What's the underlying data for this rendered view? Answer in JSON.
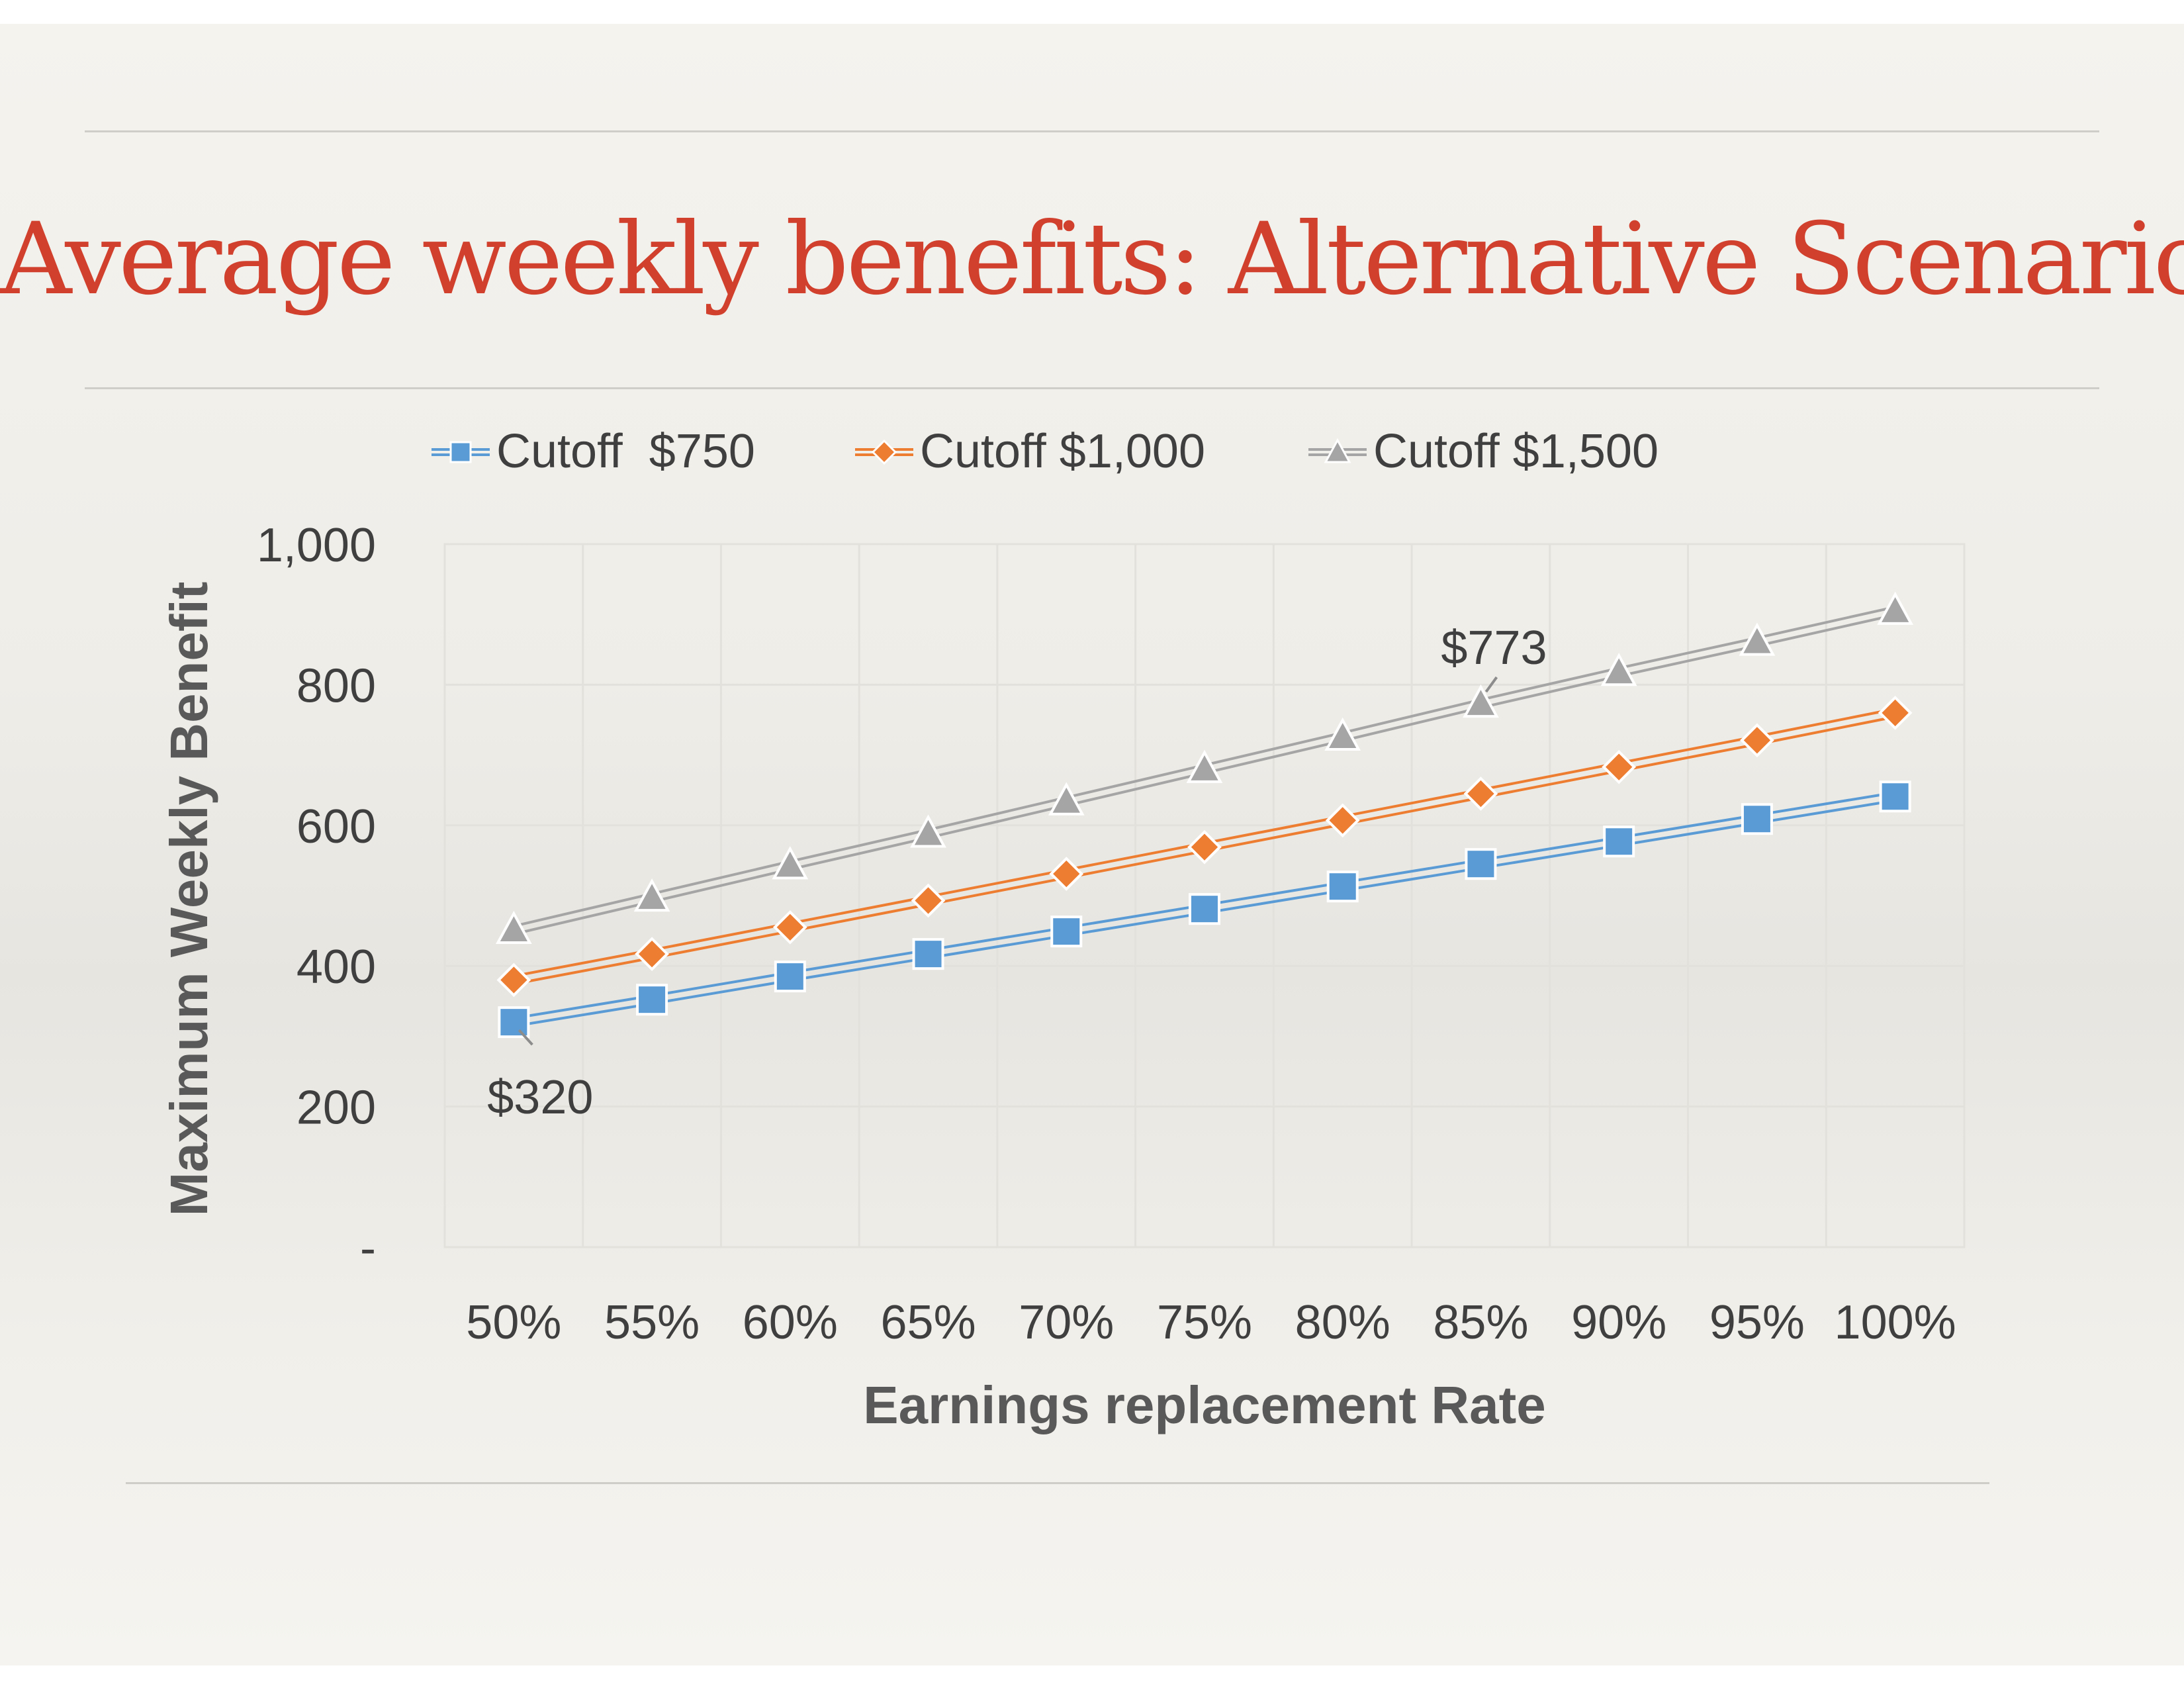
{
  "title": "Average weekly benefits: Alternative Scenarios",
  "colors": {
    "title": "#d0402d",
    "series": [
      "#5a9bd5",
      "#ed7d31",
      "#a5a5a5"
    ],
    "text": "#3f3f3f",
    "axis_title": "#595959",
    "grid": "#e3e1dc"
  },
  "chart_data": {
    "type": "line",
    "xlabel": "Earnings replacement Rate",
    "ylabel": "Maximum Weekly Benefit",
    "categories": [
      "50%",
      "55%",
      "60%",
      "65%",
      "70%",
      "75%",
      "80%",
      "85%",
      "90%",
      "95%",
      "100%"
    ],
    "ylim": [
      0,
      1000
    ],
    "yticks": [
      "-",
      "200",
      "400",
      "600",
      "800",
      "1,000"
    ],
    "grid": true,
    "legend_position": "top",
    "series": [
      {
        "name": "Cutoff  $750",
        "marker": "square",
        "values": [
          320,
          352,
          385,
          417,
          449,
          481,
          513,
          545,
          577,
          609,
          641
        ]
      },
      {
        "name": "Cutoff $1,000",
        "marker": "diamond",
        "values": [
          380,
          417,
          455,
          493,
          531,
          569,
          607,
          645,
          683,
          721,
          760
        ]
      },
      {
        "name": "Cutoff $1,500",
        "marker": "triangle",
        "values": [
          451,
          497,
          543,
          588,
          634,
          680,
          726,
          773,
          818,
          861,
          905
        ]
      }
    ],
    "annotations": [
      {
        "text": "$320",
        "series": 0,
        "category": "50%"
      },
      {
        "text": "$773",
        "series": 2,
        "category": "85%"
      }
    ]
  }
}
